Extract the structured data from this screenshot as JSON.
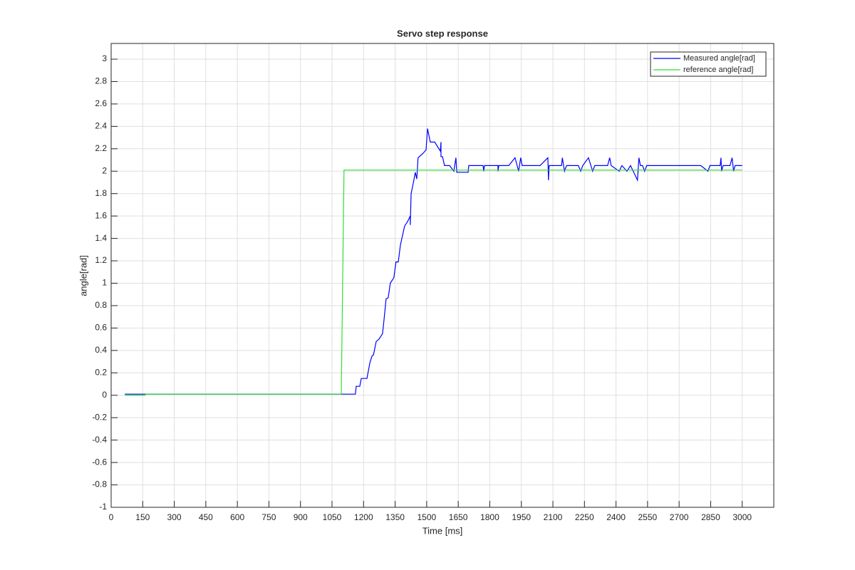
{
  "chart_data": {
    "type": "line",
    "title": "Servo step response",
    "x_label": "Time [ms]",
    "y_label": "angle[rad]",
    "xlim": [
      0,
      3150
    ],
    "ylim": [
      -1,
      3.14
    ],
    "xticks": [
      0,
      150,
      300,
      450,
      600,
      750,
      900,
      1050,
      1200,
      1350,
      1500,
      1650,
      1800,
      1950,
      2100,
      2250,
      2400,
      2550,
      2700,
      2850,
      3000
    ],
    "yticks": [
      -1,
      -0.8,
      -0.6,
      -0.4,
      -0.2,
      0,
      0.2,
      0.4,
      0.6,
      0.8,
      1,
      1.2,
      1.4,
      1.6,
      1.8,
      2,
      2.2,
      2.4,
      2.6,
      2.8,
      3
    ],
    "grid": true,
    "legend": "upper-right",
    "series": [
      {
        "name": "Measured angle[rad]",
        "color": "#0000ff",
        "x": [
          65,
          1161,
          1165,
          1182,
          1189,
          1216,
          1230,
          1240,
          1247,
          1260,
          1273,
          1290,
          1297,
          1307,
          1317,
          1327,
          1344,
          1354,
          1365,
          1375,
          1395,
          1409,
          1422,
          1422,
          1426,
          1436,
          1446,
          1453,
          1459,
          1483,
          1497,
          1504,
          1517,
          1538,
          1565,
          1568,
          1568,
          1575,
          1585,
          1609,
          1629,
          1639,
          1643,
          1697,
          1700,
          1768,
          1771,
          1775,
          1839,
          1839,
          1843,
          1890,
          1920,
          1937,
          1947,
          1954,
          2039,
          2076,
          2079,
          2082,
          2141,
          2145,
          2155,
          2165,
          2221,
          2232,
          2242,
          2269,
          2289,
          2299,
          2360,
          2370,
          2377,
          2415,
          2428,
          2452,
          2469,
          2502,
          2509,
          2516,
          2526,
          2536,
          2546,
          2803,
          2837,
          2847,
          2895,
          2899,
          2902,
          2909,
          2942,
          2952,
          2959,
          2966,
          3000
        ],
        "values": [
          0.01,
          0.01,
          0.08,
          0.08,
          0.15,
          0.15,
          0.29,
          0.35,
          0.36,
          0.48,
          0.5,
          0.55,
          0.67,
          0.86,
          0.87,
          1.0,
          1.05,
          1.19,
          1.19,
          1.34,
          1.51,
          1.55,
          1.6,
          1.52,
          1.8,
          1.89,
          1.99,
          1.93,
          2.12,
          2.16,
          2.19,
          2.38,
          2.26,
          2.26,
          2.18,
          2.26,
          2.13,
          2.13,
          2.05,
          2.05,
          2.0,
          2.12,
          1.99,
          1.99,
          2.05,
          2.05,
          2.0,
          2.05,
          2.05,
          2.0,
          2.05,
          2.05,
          2.12,
          2.0,
          2.12,
          2.05,
          2.05,
          2.12,
          1.92,
          2.05,
          2.05,
          2.12,
          2.0,
          2.05,
          2.05,
          2.0,
          2.05,
          2.12,
          2.0,
          2.05,
          2.05,
          2.12,
          2.05,
          2.0,
          2.05,
          2.0,
          2.05,
          1.92,
          2.12,
          2.05,
          2.05,
          2.0,
          2.05,
          2.05,
          2.0,
          2.05,
          2.05,
          2.12,
          2.0,
          2.05,
          2.05,
          2.12,
          2.0,
          2.05,
          2.05
        ]
      },
      {
        "name": "reference angle[rad]",
        "color": "#33dd33",
        "x": [
          65,
          160,
          165,
          1094,
          1107,
          3000
        ],
        "values": [
          0,
          0,
          0.01,
          0.01,
          2.01,
          2.01
        ]
      }
    ]
  }
}
